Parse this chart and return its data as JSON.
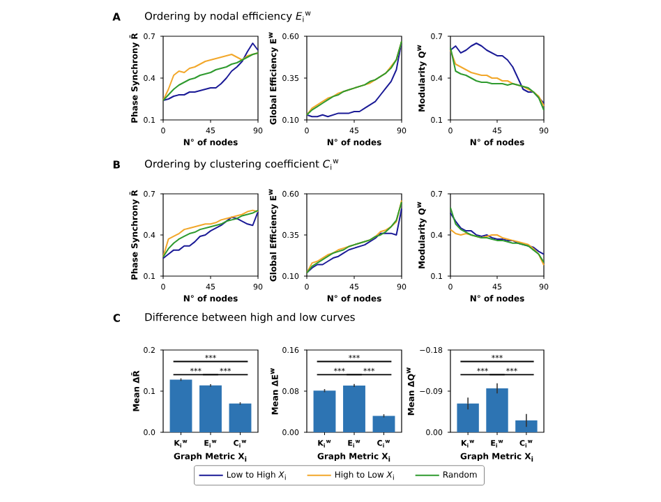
{
  "chart_data": [
    {
      "type": "line",
      "title": "Ordering by nodal efficiency *E*$_{i}$$^{w}$",
      "annotations": [
        "A"
      ],
      "xlabel": "N° of nodes",
      "ylabel": "Phase Synchrony R̄",
      "x": [
        0,
        5,
        10,
        15,
        20,
        25,
        30,
        35,
        40,
        45,
        50,
        55,
        60,
        65,
        70,
        75,
        80,
        85,
        90
      ],
      "xlim": [
        0,
        90
      ],
      "xticks": [
        0,
        45,
        90
      ],
      "ylim": [
        0.1,
        0.7
      ],
      "yticks": [
        0.1,
        0.4,
        0.7
      ],
      "series": [
        {
          "color": "#1a1a96",
          "values": [
            0.24,
            0.25,
            0.27,
            0.28,
            0.28,
            0.3,
            0.3,
            0.31,
            0.32,
            0.33,
            0.33,
            0.36,
            0.4,
            0.45,
            0.48,
            0.52,
            0.59,
            0.65,
            0.6
          ]
        },
        {
          "color": "#f2a72a",
          "values": [
            0.24,
            0.32,
            0.42,
            0.45,
            0.44,
            0.47,
            0.48,
            0.5,
            0.52,
            0.53,
            0.54,
            0.55,
            0.56,
            0.57,
            0.55,
            0.53,
            0.56,
            0.57,
            0.58
          ]
        },
        {
          "color": "#2e9a2e",
          "values": [
            0.24,
            0.28,
            0.32,
            0.35,
            0.37,
            0.39,
            0.4,
            0.42,
            0.43,
            0.44,
            0.46,
            0.47,
            0.48,
            0.5,
            0.51,
            0.53,
            0.55,
            0.57,
            0.58
          ]
        }
      ]
    },
    {
      "type": "line",
      "xlabel": "N° of nodes",
      "ylabel": "Global Efficiency E$^{w}$",
      "x": [
        0,
        5,
        10,
        15,
        20,
        25,
        30,
        35,
        40,
        45,
        50,
        55,
        60,
        65,
        70,
        75,
        80,
        85,
        90
      ],
      "xlim": [
        0,
        90
      ],
      "xticks": [
        0,
        45,
        90
      ],
      "ylim": [
        0.1,
        0.6
      ],
      "yticks": [
        {
          "value": 0.1,
          "label": "0.10"
        },
        0.35,
        {
          "value": 0.6,
          "label": "0.60"
        }
      ],
      "series": [
        {
          "color": "#1a1a96",
          "values": [
            0.13,
            0.12,
            0.12,
            0.13,
            0.12,
            0.13,
            0.14,
            0.14,
            0.14,
            0.15,
            0.15,
            0.17,
            0.19,
            0.21,
            0.25,
            0.29,
            0.33,
            0.4,
            0.57
          ]
        },
        {
          "color": "#f2a72a",
          "values": [
            0.13,
            0.17,
            0.19,
            0.21,
            0.23,
            0.24,
            0.26,
            0.27,
            0.28,
            0.29,
            0.3,
            0.31,
            0.32,
            0.34,
            0.36,
            0.38,
            0.42,
            0.46,
            0.57
          ]
        },
        {
          "color": "#2e9a2e",
          "values": [
            0.13,
            0.16,
            0.18,
            0.2,
            0.22,
            0.24,
            0.25,
            0.27,
            0.28,
            0.29,
            0.3,
            0.31,
            0.33,
            0.34,
            0.36,
            0.38,
            0.41,
            0.46,
            0.57
          ]
        }
      ]
    },
    {
      "type": "line",
      "xlabel": "N° of nodes",
      "ylabel": "Modularity Q$^{w}$",
      "x": [
        0,
        5,
        10,
        15,
        20,
        25,
        30,
        35,
        40,
        45,
        50,
        55,
        60,
        65,
        70,
        75,
        80,
        85,
        90
      ],
      "xlim": [
        0,
        90
      ],
      "xticks": [
        0,
        45,
        90
      ],
      "ylim": [
        0.1,
        0.7
      ],
      "yticks": [
        0.1,
        0.4,
        0.7
      ],
      "series": [
        {
          "color": "#1a1a96",
          "values": [
            0.6,
            0.63,
            0.58,
            0.6,
            0.63,
            0.65,
            0.63,
            0.6,
            0.58,
            0.56,
            0.56,
            0.53,
            0.48,
            0.4,
            0.32,
            0.3,
            0.3,
            0.26,
            0.22
          ]
        },
        {
          "color": "#f2a72a",
          "values": [
            0.6,
            0.5,
            0.48,
            0.46,
            0.44,
            0.43,
            0.42,
            0.42,
            0.4,
            0.4,
            0.38,
            0.38,
            0.36,
            0.35,
            0.34,
            0.32,
            0.3,
            0.27,
            0.2
          ]
        },
        {
          "color": "#2e9a2e",
          "values": [
            0.62,
            0.45,
            0.43,
            0.42,
            0.4,
            0.38,
            0.37,
            0.37,
            0.36,
            0.36,
            0.36,
            0.35,
            0.36,
            0.35,
            0.34,
            0.33,
            0.3,
            0.26,
            0.17
          ]
        }
      ]
    },
    {
      "type": "line",
      "title": "Ordering by clustering coefficient *C*$_{i}$$^{w}$",
      "annotations": [
        "B"
      ],
      "xlabel": "N° of nodes",
      "ylabel": "Phase Synchrony R̄",
      "x": [
        0,
        5,
        10,
        15,
        20,
        25,
        30,
        35,
        40,
        45,
        50,
        55,
        60,
        65,
        70,
        75,
        80,
        85,
        90
      ],
      "xlim": [
        0,
        90
      ],
      "xticks": [
        0,
        45,
        90
      ],
      "ylim": [
        0.1,
        0.7
      ],
      "yticks": [
        0.1,
        0.4,
        0.7
      ],
      "series": [
        {
          "color": "#1a1a96",
          "values": [
            0.23,
            0.26,
            0.29,
            0.29,
            0.32,
            0.32,
            0.35,
            0.39,
            0.4,
            0.43,
            0.45,
            0.47,
            0.5,
            0.53,
            0.52,
            0.5,
            0.48,
            0.47,
            0.57
          ]
        },
        {
          "color": "#f2a72a",
          "values": [
            0.24,
            0.37,
            0.39,
            0.41,
            0.44,
            0.45,
            0.46,
            0.47,
            0.48,
            0.48,
            0.49,
            0.51,
            0.52,
            0.53,
            0.54,
            0.55,
            0.57,
            0.58,
            0.57
          ]
        },
        {
          "color": "#2e9a2e",
          "values": [
            0.24,
            0.3,
            0.34,
            0.37,
            0.39,
            0.41,
            0.42,
            0.44,
            0.45,
            0.46,
            0.47,
            0.48,
            0.5,
            0.51,
            0.52,
            0.54,
            0.55,
            0.56,
            0.58
          ]
        }
      ]
    },
    {
      "type": "line",
      "xlabel": "N° of nodes",
      "ylabel": "Global Efficiency E$^{w}$",
      "x": [
        0,
        5,
        10,
        15,
        20,
        25,
        30,
        35,
        40,
        45,
        50,
        55,
        60,
        65,
        70,
        75,
        80,
        85,
        90
      ],
      "xlim": [
        0,
        90
      ],
      "xticks": [
        0,
        45,
        90
      ],
      "ylim": [
        0.1,
        0.6
      ],
      "yticks": [
        {
          "value": 0.1,
          "label": "0.10"
        },
        0.35,
        {
          "value": 0.6,
          "label": "0.60"
        }
      ],
      "series": [
        {
          "color": "#1a1a96",
          "values": [
            0.12,
            0.15,
            0.17,
            0.17,
            0.19,
            0.21,
            0.22,
            0.24,
            0.26,
            0.27,
            0.28,
            0.29,
            0.31,
            0.33,
            0.36,
            0.36,
            0.36,
            0.35,
            0.51
          ]
        },
        {
          "color": "#f2a72a",
          "values": [
            0.12,
            0.18,
            0.19,
            0.21,
            0.23,
            0.24,
            0.26,
            0.27,
            0.28,
            0.29,
            0.3,
            0.31,
            0.32,
            0.34,
            0.37,
            0.38,
            0.4,
            0.43,
            0.56
          ]
        },
        {
          "color": "#2e9a2e",
          "values": [
            0.12,
            0.16,
            0.18,
            0.2,
            0.22,
            0.24,
            0.25,
            0.26,
            0.28,
            0.29,
            0.3,
            0.31,
            0.32,
            0.34,
            0.35,
            0.37,
            0.4,
            0.44,
            0.55
          ]
        }
      ]
    },
    {
      "type": "line",
      "xlabel": "N° of nodes",
      "ylabel": "Modularity Q$^{w}$",
      "x": [
        0,
        5,
        10,
        15,
        20,
        25,
        30,
        35,
        40,
        45,
        50,
        55,
        60,
        65,
        70,
        75,
        80,
        85,
        90
      ],
      "xlim": [
        0,
        90
      ],
      "xticks": [
        0,
        45,
        90
      ],
      "ylim": [
        0.1,
        0.7
      ],
      "yticks": [
        0.1,
        0.4,
        0.7
      ],
      "legend": "bottom",
      "series": [
        {
          "name": "Low to High *X*$_{i}$",
          "color": "#1a1a96",
          "values": [
            0.56,
            0.5,
            0.45,
            0.43,
            0.43,
            0.4,
            0.39,
            0.4,
            0.38,
            0.37,
            0.37,
            0.36,
            0.36,
            0.34,
            0.33,
            0.32,
            0.31,
            0.28,
            0.26
          ]
        },
        {
          "name": "High to Low *X*$_{i}$",
          "color": "#f2a72a",
          "values": [
            0.44,
            0.41,
            0.4,
            0.41,
            0.4,
            0.39,
            0.38,
            0.39,
            0.4,
            0.4,
            0.38,
            0.37,
            0.36,
            0.35,
            0.34,
            0.33,
            0.3,
            0.26,
            0.18
          ]
        },
        {
          "name": "Random",
          "color": "#2e9a2e",
          "values": [
            0.6,
            0.48,
            0.44,
            0.42,
            0.4,
            0.39,
            0.38,
            0.38,
            0.37,
            0.36,
            0.36,
            0.35,
            0.34,
            0.34,
            0.33,
            0.32,
            0.29,
            0.26,
            0.2
          ]
        }
      ]
    },
    {
      "type": "bar",
      "title": "Difference between high and low curves",
      "annotations": [
        "C",
        "***",
        "***",
        "***"
      ],
      "xlabel": "Graph Metric X$_{i}$",
      "ylabel": "Mean ΔR̄",
      "categories": [
        "K$_{i}$$^{w}$",
        "E$_{i}$$^{w}$",
        "C$_{i}$$^{w}$"
      ],
      "values": [
        0.128,
        0.114,
        0.07
      ],
      "errors": [
        0.003,
        0.003,
        0.003
      ],
      "color": "#2d74b3",
      "ylim": [
        0,
        0.2
      ],
      "yticks": [
        {
          "value": 0,
          "label": "0.0"
        },
        0.1,
        0.2
      ]
    },
    {
      "type": "bar",
      "annotations": [
        "***",
        "***",
        "***"
      ],
      "xlabel": "Graph Metric X$_{i}$",
      "ylabel": "Mean ΔE$^{w}$",
      "categories": [
        "K$_{i}$$^{w}$",
        "E$_{i}$$^{w}$",
        "C$_{i}$$^{w}$"
      ],
      "values": [
        0.081,
        0.091,
        0.032
      ],
      "errors": [
        0.003,
        0.003,
        0.003
      ],
      "color": "#2d74b3",
      "ylim": [
        0,
        0.16
      ],
      "yticks": [
        {
          "value": 0,
          "label": "0.00"
        },
        0.08,
        0.16
      ]
    },
    {
      "type": "bar",
      "annotations": [
        "***",
        "***",
        "***"
      ],
      "xlabel": "Graph Metric X$_{i}$",
      "ylabel": "Mean ΔQ$^{w}$",
      "categories": [
        "K$_{i}$$^{w}$",
        "E$_{i}$$^{w}$",
        "C$_{i}$$^{w}$"
      ],
      "values": [
        -0.063,
        -0.096,
        -0.026
      ],
      "errors": [
        0.013,
        0.011,
        0.014
      ],
      "color": "#2d74b3",
      "ylim": [
        0,
        -0.18
      ],
      "yticks": [
        {
          "value": 0,
          "label": "0.00"
        },
        {
          "value": -0.09,
          "label": "−0.09"
        },
        {
          "value": -0.18,
          "label": "−0.18"
        }
      ]
    }
  ]
}
